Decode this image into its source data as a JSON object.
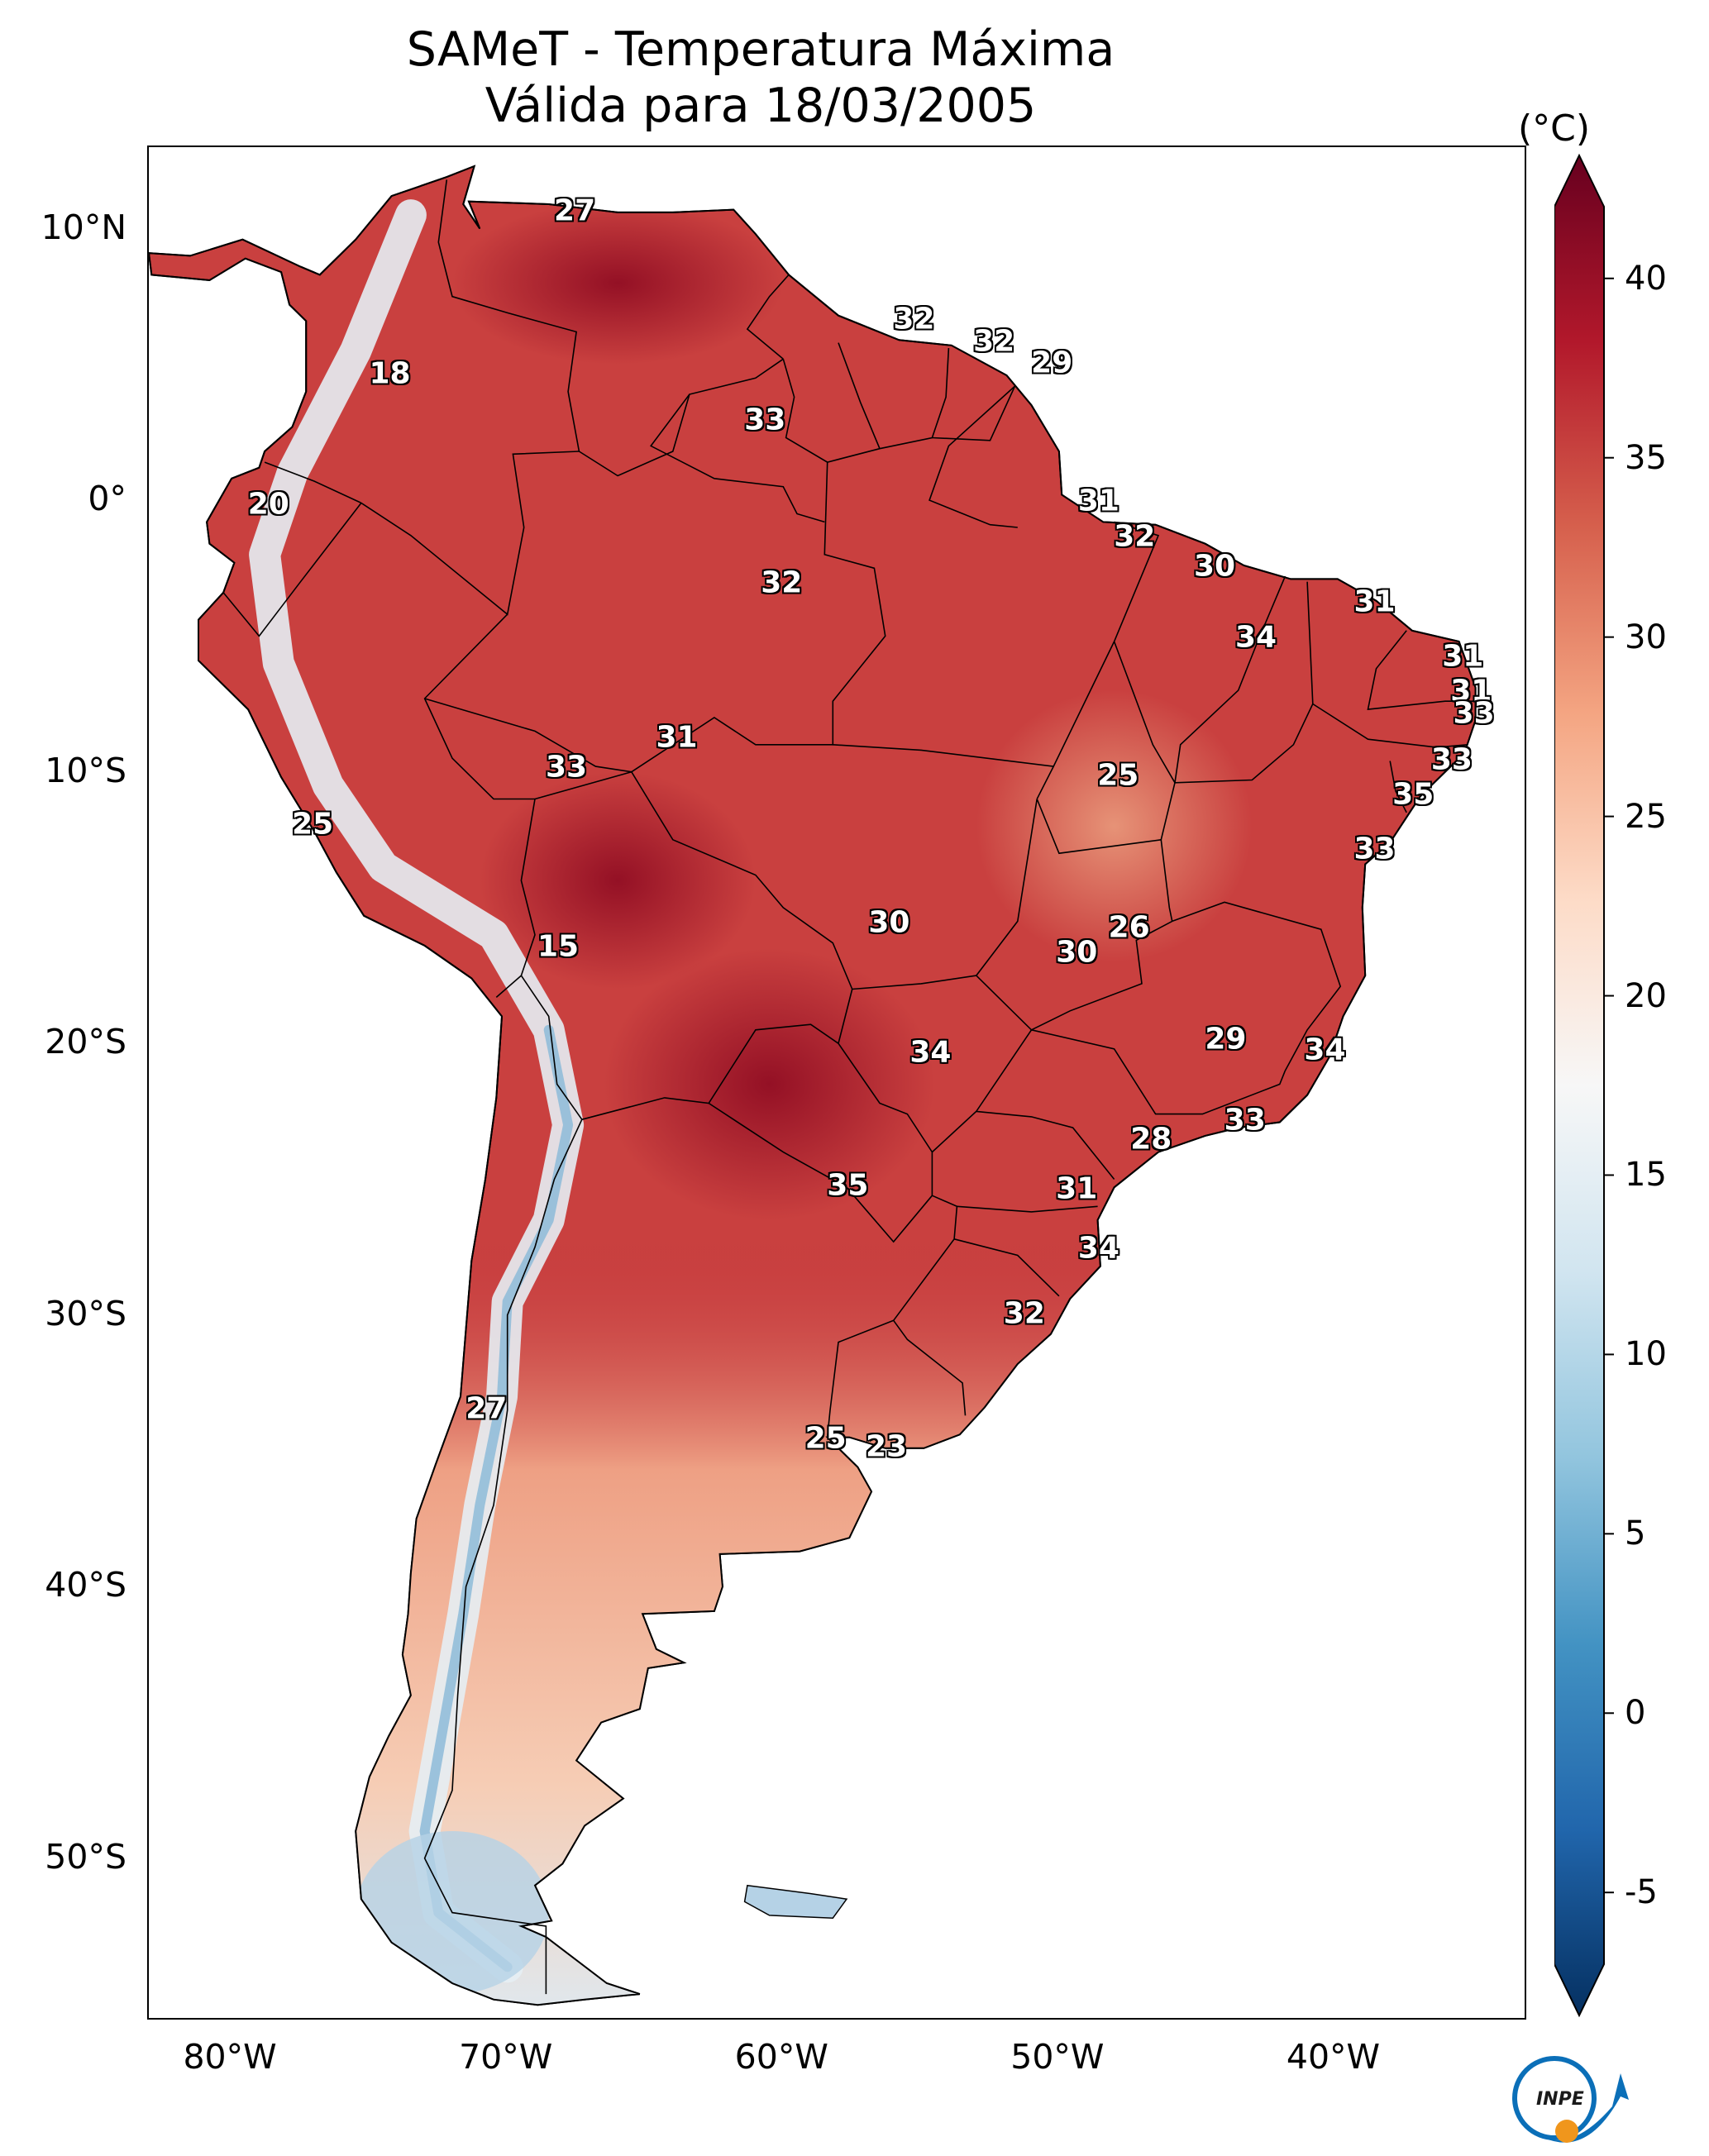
{
  "title": {
    "line1": "SAMeT - Temperatura Máxima",
    "line2": "Válida para 18/03/2005"
  },
  "colorbar": {
    "unit": "(°C)",
    "min": -7,
    "max": 42,
    "tick_values": [
      -5,
      0,
      5,
      10,
      15,
      20,
      25,
      30,
      35,
      40
    ],
    "tick_labels": [
      "-5",
      "0",
      "5",
      "10",
      "15",
      "20",
      "25",
      "30",
      "35",
      "40"
    ],
    "colors": [
      "#053061",
      "#2166ac",
      "#4393c3",
      "#92c5de",
      "#d1e5f0",
      "#f7f7f7",
      "#fddbc7",
      "#f4a582",
      "#d6604d",
      "#b2182b",
      "#67001f"
    ]
  },
  "axes": {
    "lon_range": [
      -83,
      -33
    ],
    "lat_range": [
      -56,
      13
    ],
    "lat_ticks": [
      10,
      0,
      -10,
      -20,
      -30,
      -40,
      -50
    ],
    "lat_labels": [
      "10°N",
      "0°",
      "10°S",
      "20°S",
      "30°S",
      "40°S",
      "50°S"
    ],
    "lon_ticks": [
      -80,
      -70,
      -60,
      -50,
      -40
    ],
    "lon_labels": [
      "80°W",
      "70°W",
      "60°W",
      "50°W",
      "40°W"
    ]
  },
  "logo": {
    "text": "INPE",
    "name": "INPE logo"
  },
  "chart_data": {
    "type": "map",
    "title": "SAMeT - Temperatura Máxima Válida para 18/03/2005",
    "variable": "Maximum temperature (°C)",
    "region": "South America",
    "date": "18/03/2005",
    "station_values": [
      {
        "label": "27",
        "lon": -67.5,
        "lat": 10.6
      },
      {
        "label": "18",
        "lon": -74.2,
        "lat": 4.6
      },
      {
        "label": "32",
        "lon": -55.2,
        "lat": 6.6
      },
      {
        "label": "32",
        "lon": -52.3,
        "lat": 5.8
      },
      {
        "label": "29",
        "lon": -50.2,
        "lat": 5.0
      },
      {
        "label": "33",
        "lon": -60.6,
        "lat": 2.9
      },
      {
        "label": "20",
        "lon": -78.6,
        "lat": -0.2
      },
      {
        "label": "31",
        "lon": -48.5,
        "lat": -0.1
      },
      {
        "label": "32",
        "lon": -47.2,
        "lat": -1.4
      },
      {
        "label": "30",
        "lon": -44.3,
        "lat": -2.5
      },
      {
        "label": "32",
        "lon": -60.0,
        "lat": -3.1
      },
      {
        "label": "31",
        "lon": -38.5,
        "lat": -3.8
      },
      {
        "label": "34",
        "lon": -42.8,
        "lat": -5.1
      },
      {
        "label": "31",
        "lon": -35.3,
        "lat": -5.8
      },
      {
        "label": "31",
        "lon": -35.0,
        "lat": -7.1
      },
      {
        "label": "33",
        "lon": -34.9,
        "lat": -7.9
      },
      {
        "label": "31",
        "lon": -63.8,
        "lat": -8.8
      },
      {
        "label": "33",
        "lon": -67.8,
        "lat": -9.9
      },
      {
        "label": "25",
        "lon": -47.8,
        "lat": -10.2
      },
      {
        "label": "33",
        "lon": -35.7,
        "lat": -9.6
      },
      {
        "label": "35",
        "lon": -37.1,
        "lat": -10.9
      },
      {
        "label": "25",
        "lon": -77.0,
        "lat": -12.0
      },
      {
        "label": "33",
        "lon": -38.5,
        "lat": -12.9
      },
      {
        "label": "26",
        "lon": -47.4,
        "lat": -15.8
      },
      {
        "label": "30",
        "lon": -56.1,
        "lat": -15.6
      },
      {
        "label": "15",
        "lon": -68.1,
        "lat": -16.5
      },
      {
        "label": "30",
        "lon": -49.3,
        "lat": -16.7
      },
      {
        "label": "29",
        "lon": -43.9,
        "lat": -19.9
      },
      {
        "label": "34",
        "lon": -40.3,
        "lat": -20.3
      },
      {
        "label": "34",
        "lon": -54.6,
        "lat": -20.4
      },
      {
        "label": "33",
        "lon": -43.2,
        "lat": -22.9
      },
      {
        "label": "28",
        "lon": -46.6,
        "lat": -23.6
      },
      {
        "label": "35",
        "lon": -57.6,
        "lat": -25.3
      },
      {
        "label": "31",
        "lon": -49.3,
        "lat": -25.4
      },
      {
        "label": "34",
        "lon": -48.5,
        "lat": -27.6
      },
      {
        "label": "32",
        "lon": -51.2,
        "lat": -30.0
      },
      {
        "label": "27",
        "lon": -70.7,
        "lat": -33.5
      },
      {
        "label": "25",
        "lon": -58.4,
        "lat": -34.6
      },
      {
        "label": "23",
        "lon": -56.2,
        "lat": -34.9
      }
    ]
  }
}
